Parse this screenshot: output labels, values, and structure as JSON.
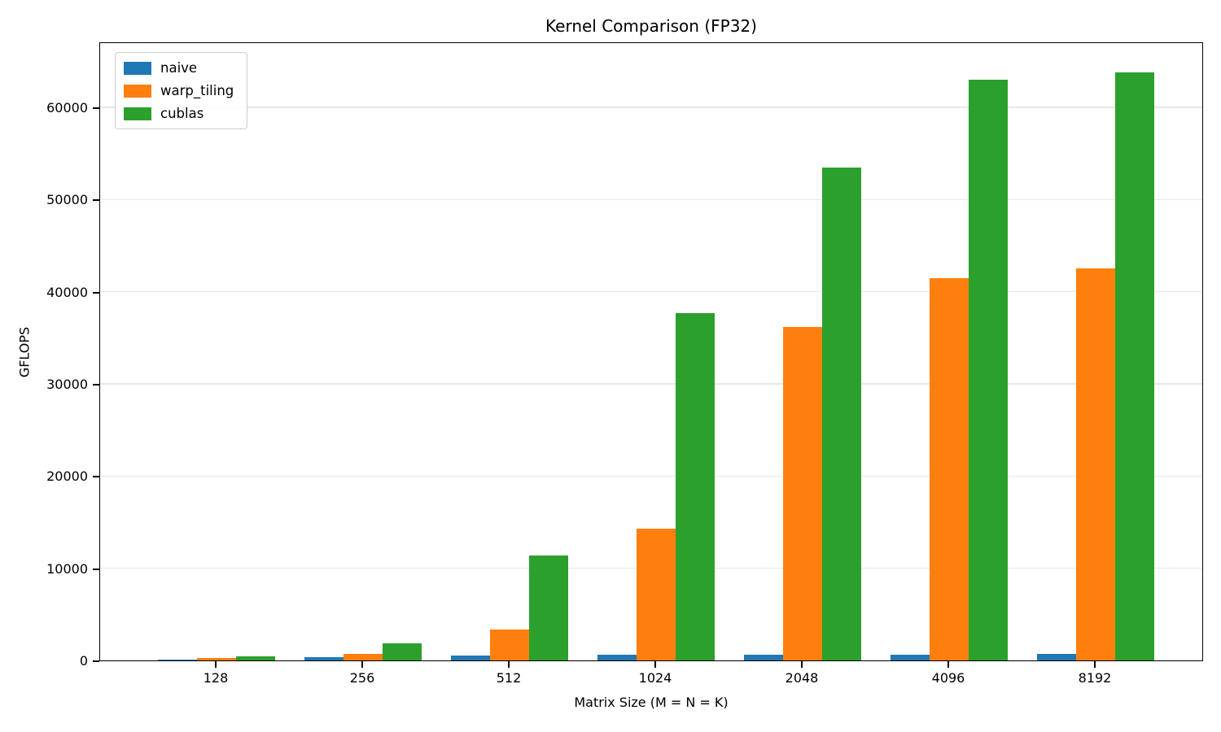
{
  "chart_data": {
    "type": "bar",
    "title": "Kernel Comparison (FP32)",
    "xlabel": "Matrix Size (M = N = K)",
    "ylabel": "GFLOPS",
    "categories": [
      "128",
      "256",
      "512",
      "1024",
      "2048",
      "4096",
      "8192"
    ],
    "series": [
      {
        "name": "naive",
        "color": "#1f77b4",
        "values": [
          25,
          320,
          540,
          610,
          620,
          660,
          700
        ]
      },
      {
        "name": "warp_tiling",
        "color": "#ff7f0e",
        "values": [
          230,
          700,
          3350,
          14300,
          36200,
          41500,
          42500
        ]
      },
      {
        "name": "cublas",
        "color": "#2ca02c",
        "values": [
          400,
          1850,
          11400,
          37700,
          53500,
          63000,
          63800
        ]
      }
    ],
    "yticks": [
      0,
      10000,
      20000,
      30000,
      40000,
      50000,
      60000
    ],
    "ylim": [
      0,
      67150
    ],
    "grid": "horizontal",
    "legend_position": "upper-left",
    "background_color": "#ffffff",
    "text_color": "#000000"
  }
}
